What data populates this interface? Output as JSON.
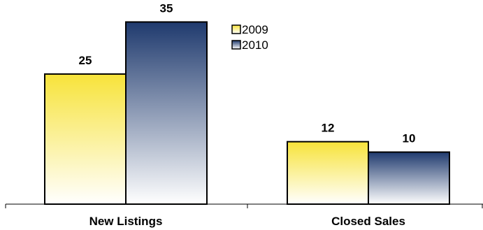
{
  "chart_data": {
    "type": "bar",
    "categories": [
      "New Listings",
      "Closed Sales"
    ],
    "series": [
      {
        "name": "2009",
        "values": [
          25,
          12
        ],
        "color_top": "#f7e33a",
        "color_bottom": "#ffffff"
      },
      {
        "name": "2010",
        "values": [
          35,
          10
        ],
        "color_top": "#1f3a6e",
        "color_bottom": "#ffffff"
      }
    ],
    "title": "",
    "xlabel": "",
    "ylabel": "",
    "ylim": [
      0,
      36
    ],
    "grid": false,
    "legend_position": "top-right"
  }
}
